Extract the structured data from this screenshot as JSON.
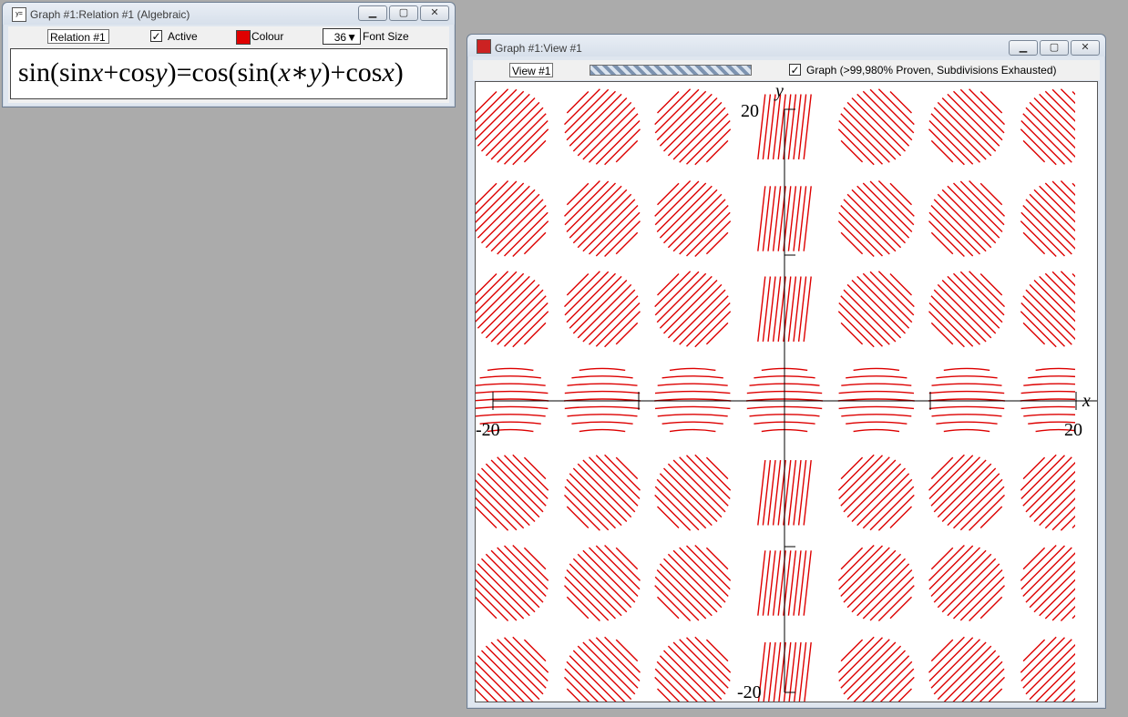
{
  "relation_window": {
    "title": "Graph #1:Relation #1 (Algebraic)",
    "icon": "y=-icon",
    "name_value": "Relation #1",
    "active_checked": "✓",
    "active_label": "Active",
    "colour_label": "Colour",
    "colour": "#e00000",
    "font_size_value": "36",
    "font_size_label": "Font Size",
    "equation": {
      "p1": "sin(sin",
      "x1": "x",
      "p2": "+cos",
      "y1": "y",
      "p3": ")=cos(sin(",
      "x2": "x",
      "p4": "∗",
      "y2": "y",
      "p5": ")+cos",
      "x3": "x",
      "p6": ")"
    }
  },
  "view_window": {
    "title": "Graph #1:View #1",
    "view_name_value": "View #1",
    "graph_checked": "✓",
    "graph_status": "Graph (>99,980% Proven, Subdivisions Exhausted)",
    "plot": {
      "x_axis_label": "x",
      "y_axis_label": "y",
      "x_min_label": "-20",
      "x_max_label": "20",
      "y_min_label": "-20",
      "y_max_label": "20",
      "curve_color": "#dd0000"
    }
  },
  "chart_data": {
    "type": "implicit",
    "relation": "sin(sin x + cos y) = cos(sin(x*y) + cos x)",
    "xlim": [
      -20,
      20
    ],
    "ylim": [
      -20,
      20
    ],
    "xlabel": "x",
    "ylabel": "y",
    "x_ticks": [
      -20,
      20
    ],
    "y_ticks": [
      -20,
      20
    ],
    "blob_centers_x": [
      -18.8,
      -12.5,
      -6.3,
      0,
      6.3,
      12.5,
      18.8
    ],
    "blob_centers_y": [
      18.8,
      12.5,
      6.3,
      0,
      -6.3,
      -12.5,
      -18.8
    ],
    "grid": false
  }
}
